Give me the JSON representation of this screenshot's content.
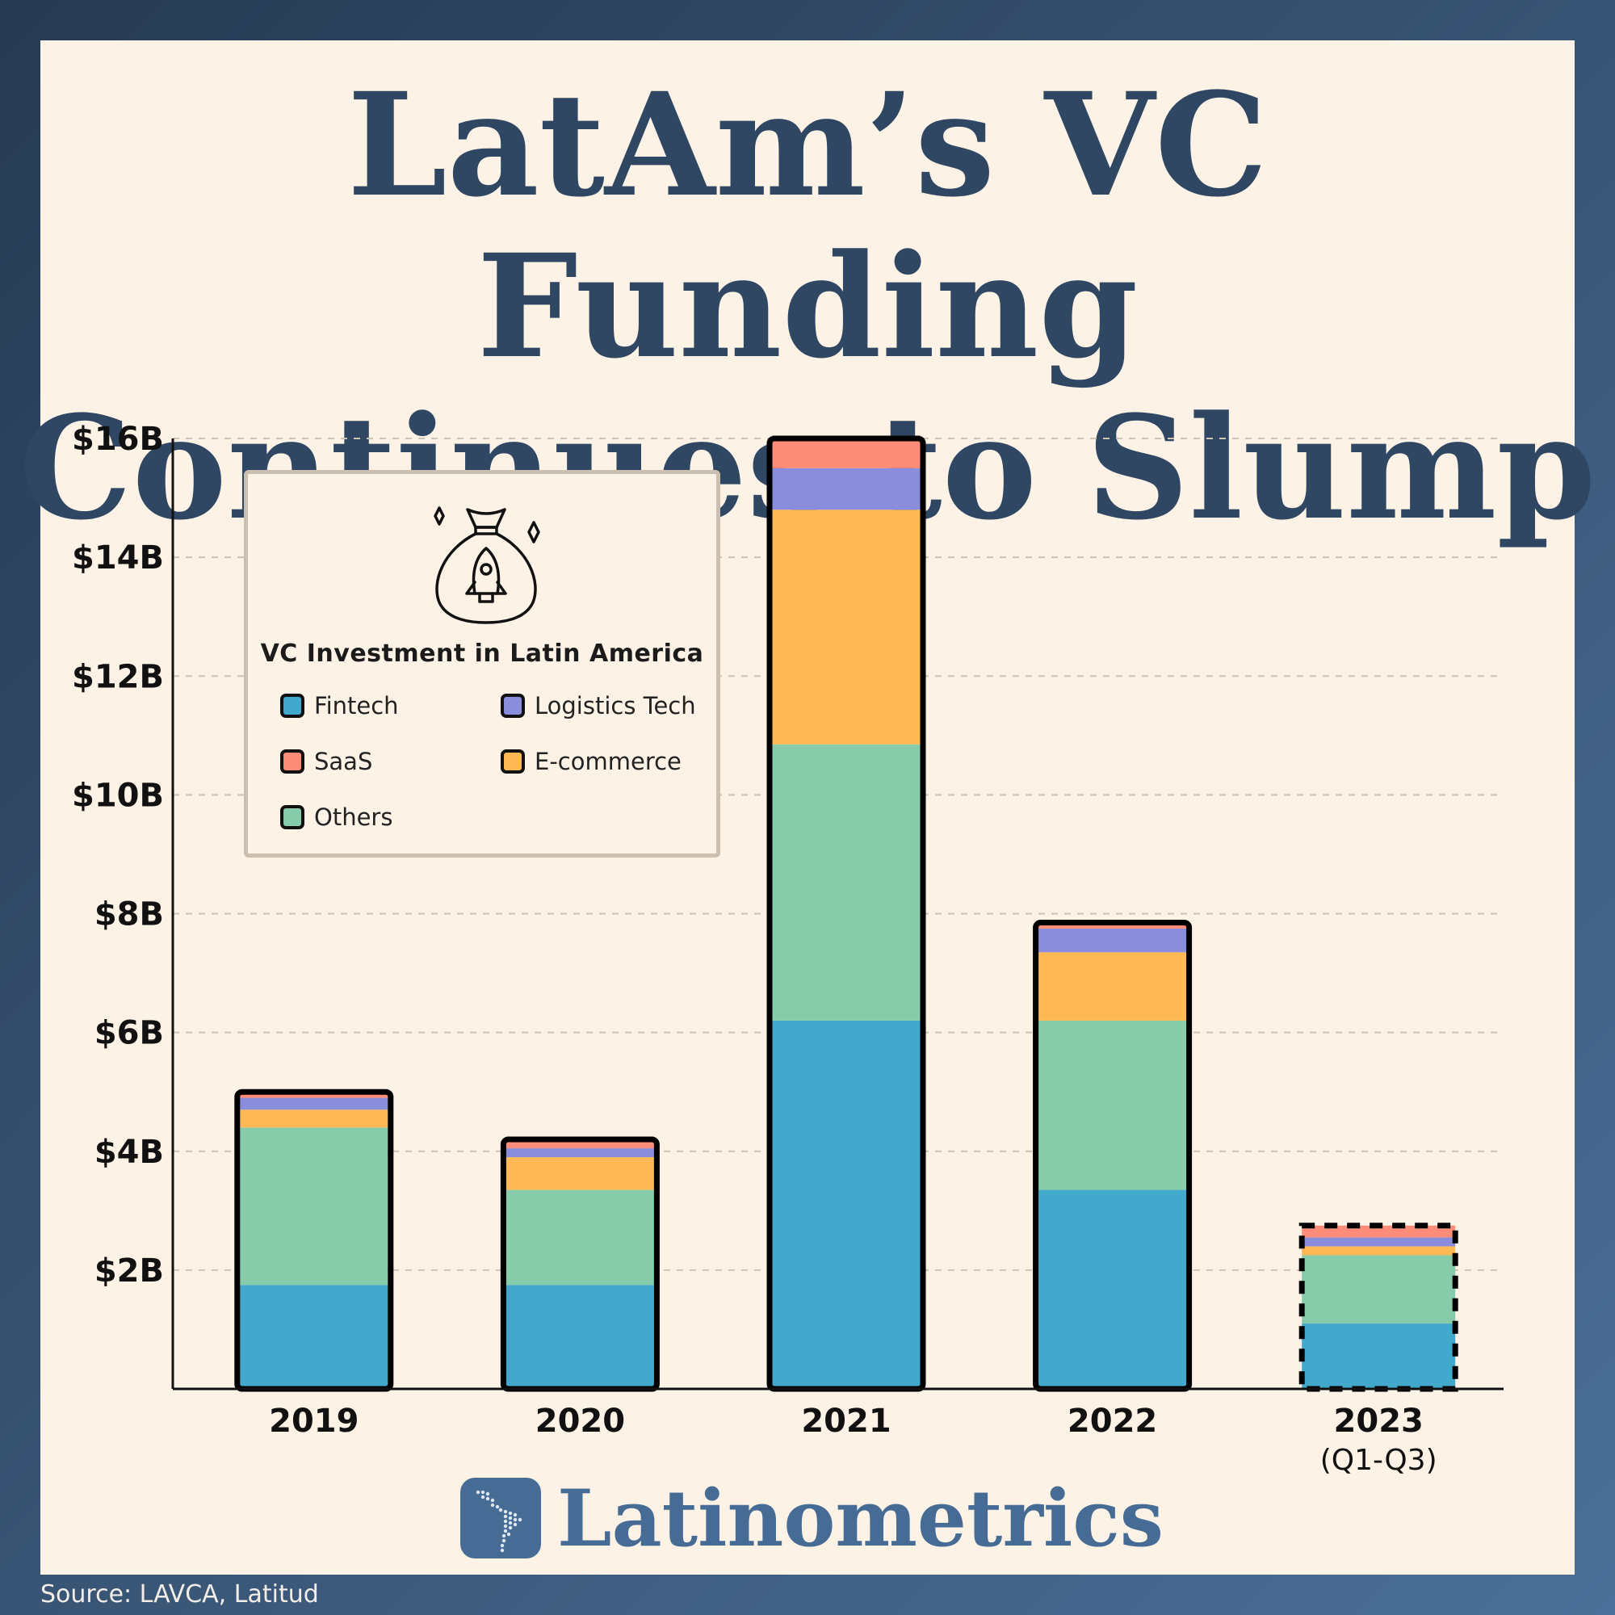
{
  "title_lines": [
    "LatAm’s VC Funding",
    "Continues to Slump"
  ],
  "legend": {
    "title": "VC Investment in Latin America",
    "icon": "money-bag-rocket-icon",
    "items": [
      {
        "label": "Fintech",
        "color": "#42a8cc"
      },
      {
        "label": "Logistics Tech",
        "color": "#8a8ddb"
      },
      {
        "label": "SaaS",
        "color": "#fd8c78"
      },
      {
        "label": "E-commerce",
        "color": "#ffb954"
      },
      {
        "label": "Others",
        "color": "#86cbaa"
      }
    ]
  },
  "chart_data": {
    "type": "bar",
    "stacked": true,
    "categories": [
      "2019",
      "2020",
      "2021",
      "2022",
      "2023"
    ],
    "category_sublabels": [
      "",
      "",
      "",
      "",
      "(Q1-Q3)"
    ],
    "series": [
      {
        "name": "Fintech",
        "color": "#42a8cc",
        "values": [
          1.75,
          1.75,
          6.2,
          3.35,
          1.1
        ]
      },
      {
        "name": "Others",
        "color": "#86cbaa",
        "values": [
          2.65,
          1.6,
          4.65,
          2.85,
          1.15
        ]
      },
      {
        "name": "E-commerce",
        "color": "#ffb954",
        "values": [
          0.3,
          0.55,
          3.95,
          1.15,
          0.15
        ]
      },
      {
        "name": "Logistics Tech",
        "color": "#8a8ddb",
        "values": [
          0.2,
          0.15,
          0.7,
          0.4,
          0.15
        ]
      },
      {
        "name": "SaaS",
        "color": "#fd8c78",
        "values": [
          0.1,
          0.15,
          0.5,
          0.1,
          0.2
        ]
      }
    ],
    "dashed_outline_categories": [
      "2023"
    ],
    "y_ticks": [
      "$2B",
      "$4B",
      "$6B",
      "$8B",
      "$10B",
      "$12B",
      "$14B",
      "$16B"
    ],
    "ylim": [
      0,
      16
    ],
    "grid": true,
    "legend_position": "top-left"
  },
  "brand": {
    "name": "Latinometrics"
  },
  "source": "Source: LAVCA, Latitud"
}
